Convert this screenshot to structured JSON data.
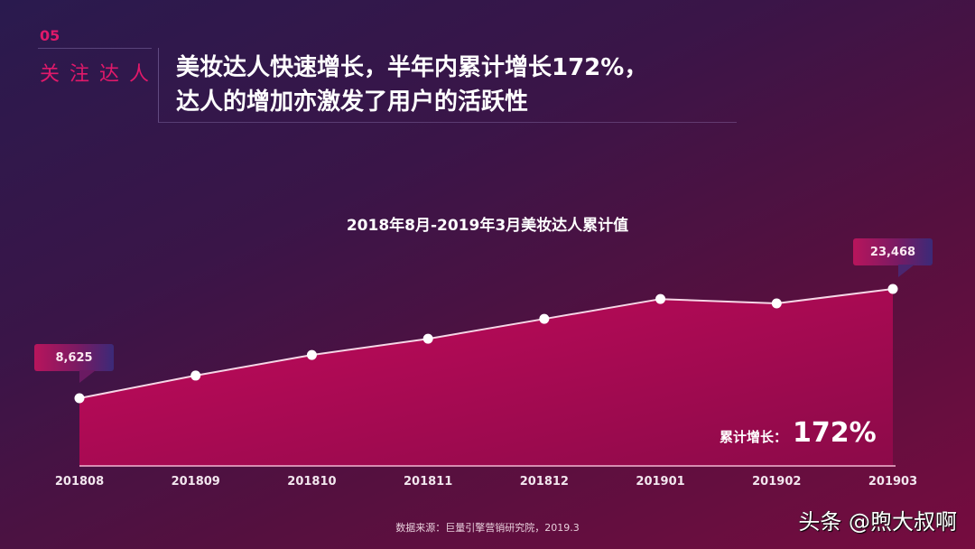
{
  "section": {
    "number": "05",
    "label": "关注达人"
  },
  "headline": "美妆达人快速增长，半年内累计增长172%，\n达人的增加亦激发了用户的活跃性",
  "chart_data": {
    "type": "area",
    "title": "2018年8月-2019年3月美妆达人累计值",
    "categories": [
      "201808",
      "201809",
      "201810",
      "201811",
      "201812",
      "201901",
      "201902",
      "201903"
    ],
    "series": [
      {
        "name": "美妆达人累计值",
        "values": [
          8625,
          11700,
          14500,
          16700,
          19400,
          22100,
          21500,
          23468
        ]
      }
    ],
    "annotations": [
      {
        "category": "201808",
        "label": "8,625"
      },
      {
        "category": "201903",
        "label": "23,468"
      }
    ],
    "growth_label": "累计增长：",
    "growth_value": "172%",
    "xlabel": "",
    "ylabel": "",
    "grid": false,
    "colors": {
      "fill_top": "#c0095a",
      "fill_bottom": "#8a0a48",
      "line": "#ffffff",
      "marker": "#ffffff"
    }
  },
  "footer": {
    "source": "数据来源：巨量引擎营销研究院，2019.3",
    "watermark": "头条 @煦大叔啊"
  }
}
